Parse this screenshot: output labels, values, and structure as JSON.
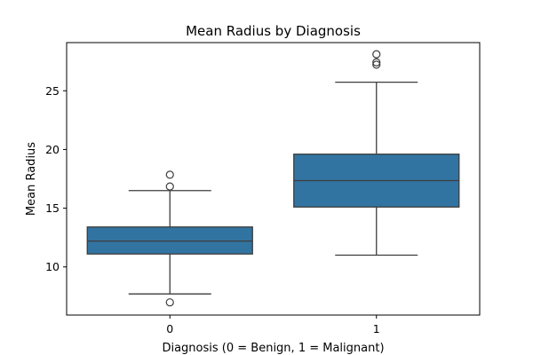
{
  "chart_data": {
    "type": "box",
    "title": "Mean Radius by Diagnosis",
    "xlabel": "Diagnosis (0 = Benign, 1 = Malignant)",
    "ylabel": "Mean Radius",
    "categories": [
      "0",
      "1"
    ],
    "ylim": [
      5.9,
      29.1
    ],
    "yticks": [
      10,
      15,
      20,
      25
    ],
    "grid": false,
    "box_color": "#3274a1",
    "line_color": "#3d3d3d",
    "boxes": [
      {
        "category": "0",
        "whisker_low": 7.7,
        "q1": 11.1,
        "median": 12.2,
        "q3": 13.4,
        "whisker_high": 16.5,
        "outliers": [
          6.98,
          16.85,
          17.85
        ]
      },
      {
        "category": "1",
        "whisker_low": 11.0,
        "q1": 15.1,
        "median": 17.35,
        "q3": 19.6,
        "whisker_high": 25.73,
        "outliers": [
          27.22,
          27.42,
          28.11
        ]
      }
    ]
  }
}
